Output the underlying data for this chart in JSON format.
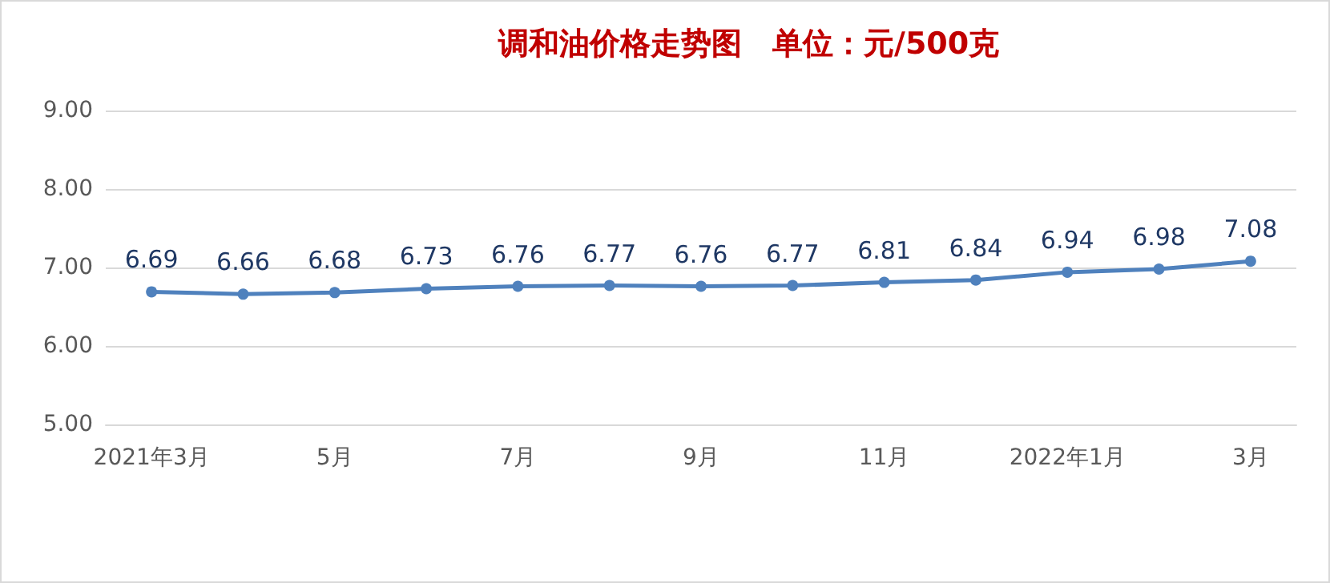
{
  "chart_data": {
    "type": "line",
    "title": "调和油价格走势图　单位：元/500克",
    "categories": [
      "2021年3月",
      null,
      "5月",
      null,
      "7月",
      null,
      "9月",
      null,
      "11月",
      null,
      "2022年1月",
      null,
      "3月"
    ],
    "series": [
      {
        "color": "#4f81bd",
        "values": [
          6.69,
          6.66,
          6.68,
          6.73,
          6.76,
          6.77,
          6.76,
          6.77,
          6.81,
          6.84,
          6.94,
          6.98,
          7.08
        ]
      }
    ],
    "ylim": [
      5,
      9
    ],
    "yticks": [
      {
        "value": 5,
        "label": "5.00"
      },
      {
        "value": 6,
        "label": "6.00"
      },
      {
        "value": 7,
        "label": "7.00"
      },
      {
        "value": 8,
        "label": "8.00"
      },
      {
        "value": 9,
        "label": "9.00"
      }
    ],
    "grid": "y",
    "marker": "circle",
    "line_style": "solid",
    "data_labels": true
  }
}
